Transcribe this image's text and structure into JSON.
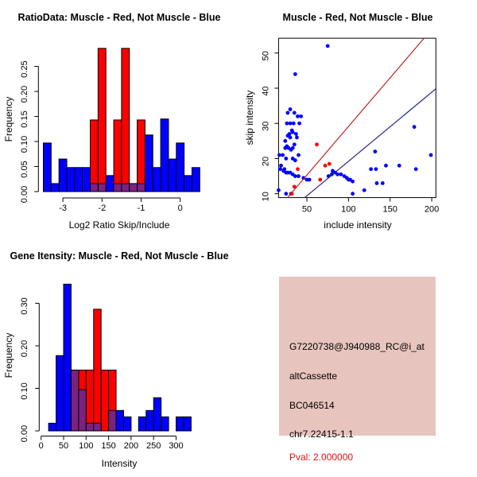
{
  "colors": {
    "blue": "#0000ff",
    "red": "#ff0000",
    "purple": "#7b2182",
    "line_red": "#c02428",
    "line_blue": "#202090",
    "pval": "#dd1111",
    "info_bg": "#e8c4be",
    "axis": "#000000"
  },
  "chart_data": [
    {
      "id": "ratio-histogram",
      "type": "bar",
      "title": "RatioData: Muscle - Red, Not Muscle - Blue",
      "xlabel": "Log2 Ratio Skip/Include",
      "ylabel": "Frequency",
      "bins": {
        "start": -3.5,
        "width": 0.2
      },
      "series": [
        {
          "name": "not-muscle",
          "color_key": "blue",
          "heights": [
            0.097,
            0.016,
            0.065,
            0.048,
            0.048,
            0.048,
            0.016,
            0.016,
            0.032,
            0.016,
            0.016,
            0.016,
            0.016,
            0.113,
            0.048,
            0.145,
            0.065,
            0.097,
            0.032,
            0.048
          ]
        },
        {
          "name": "muscle",
          "color_key": "red",
          "heights": [
            0,
            0,
            0,
            0,
            0,
            0,
            0.143,
            0.286,
            0,
            0.143,
            0.286,
            0,
            0.143,
            0,
            0,
            0,
            0,
            0,
            0,
            0
          ]
        },
        {
          "name": "overlap",
          "color_key": "purple",
          "heights": [
            0,
            0,
            0,
            0,
            0,
            0,
            0.016,
            0.016,
            0,
            0.016,
            0.016,
            0.016,
            0.016,
            0,
            0,
            0,
            0,
            0,
            0,
            0
          ]
        }
      ],
      "x_ticks": {
        "values": [
          -3,
          -2,
          -1,
          0
        ],
        "labels": [
          "-3",
          "-2",
          "-1",
          "0"
        ]
      },
      "y_ticks": {
        "values": [
          0,
          0.05,
          0.1,
          0.15,
          0.2,
          0.25
        ],
        "labels": [
          "0.00",
          "0.05",
          "0.10",
          "0.15",
          "0.20",
          "0.25"
        ]
      },
      "xlim": [
        -3.5,
        0.5
      ],
      "ylim": [
        0,
        0.29
      ],
      "grid": false,
      "legend": "none"
    },
    {
      "id": "intensity-scatter",
      "type": "scatter",
      "title": "Muscle - Red, Not Muscle - Blue",
      "xlabel": "include intensity",
      "ylabel": "skip intensity",
      "series": [
        {
          "name": "not-muscle",
          "color_key": "blue",
          "points": [
            [
              75,
              52
            ],
            [
              36,
              44
            ],
            [
              30,
              34
            ],
            [
              27,
              33
            ],
            [
              35,
              33
            ],
            [
              39,
              32
            ],
            [
              43,
              32
            ],
            [
              26,
              30
            ],
            [
              30,
              30
            ],
            [
              34,
              30
            ],
            [
              41,
              30
            ],
            [
              32,
              28
            ],
            [
              29,
              27
            ],
            [
              33,
              27.5
            ],
            [
              37,
              27
            ],
            [
              27,
              26.5
            ],
            [
              30,
              26
            ],
            [
              38,
              26
            ],
            [
              24,
              25
            ],
            [
              26,
              23.5
            ],
            [
              28,
              23
            ],
            [
              31,
              22.5
            ],
            [
              33,
              23
            ],
            [
              35,
              24
            ],
            [
              24,
              23
            ],
            [
              17,
              21
            ],
            [
              21,
              21
            ],
            [
              25,
              20
            ],
            [
              33,
              20
            ],
            [
              36,
              19.5
            ],
            [
              40,
              21
            ],
            [
              19,
              18
            ],
            [
              18,
              17
            ],
            [
              23,
              17
            ],
            [
              22,
              16.5
            ],
            [
              25,
              16
            ],
            [
              27,
              16
            ],
            [
              30,
              16
            ],
            [
              33,
              15.5
            ],
            [
              36,
              15
            ],
            [
              40,
              15
            ],
            [
              46,
              14.5
            ],
            [
              50,
              14
            ],
            [
              53,
              14
            ],
            [
              76,
              15
            ],
            [
              80,
              15.5
            ],
            [
              81,
              16.5
            ],
            [
              84,
              16
            ],
            [
              87,
              15.5
            ],
            [
              91,
              15.5
            ],
            [
              95,
              15
            ],
            [
              98,
              14.5
            ],
            [
              100,
              14
            ],
            [
              102,
              14
            ],
            [
              105,
              13.5
            ],
            [
              105,
              10
            ],
            [
              119,
              11
            ],
            [
              16,
              11
            ],
            [
              25,
              10
            ],
            [
              31,
              10
            ],
            [
              127,
              17
            ],
            [
              133,
              17
            ],
            [
              145,
              18
            ],
            [
              161,
              18
            ],
            [
              181,
              17
            ],
            [
              179,
              29
            ],
            [
              132,
              22
            ],
            [
              199,
              21
            ],
            [
              141,
              13
            ],
            [
              134,
              13
            ]
          ]
        },
        {
          "name": "muscle",
          "color_key": "red",
          "points": [
            [
              39,
              17
            ],
            [
              62,
              24
            ],
            [
              72,
              18
            ],
            [
              77,
              18.5
            ],
            [
              66,
              14
            ],
            [
              35,
              12
            ],
            [
              32,
              10
            ]
          ]
        }
      ],
      "lines": [
        {
          "name": "muscle-fit-line",
          "color_key": "line_red",
          "from": [
            26.8,
            8.9
          ],
          "to": [
            190.7,
            54.2
          ]
        },
        {
          "name": "not-muscle-fit-line",
          "color_key": "line_blue",
          "from": [
            47.4,
            8.9
          ],
          "to": [
            204.8,
            39.8
          ]
        }
      ],
      "x_ticks": {
        "values": [
          50,
          100,
          150,
          200
        ],
        "labels": [
          "50",
          "100",
          "150",
          "200"
        ]
      },
      "y_ticks": {
        "values": [
          10,
          20,
          30,
          40,
          50
        ],
        "labels": [
          "10",
          "20",
          "30",
          "40",
          "50"
        ]
      },
      "xlim": [
        16,
        205
      ],
      "ylim": [
        8.9,
        54.2
      ],
      "grid": false,
      "legend": "none"
    },
    {
      "id": "gene-intensity-histogram",
      "type": "bar",
      "title": "Gene Itensity: Muscle - Red, Not Muscle - Blue",
      "xlabel": "Intensity",
      "ylabel": "Frequency",
      "bins": {
        "start": 16.67,
        "width": 16.67
      },
      "series": [
        {
          "name": "not-muscle",
          "color_key": "blue",
          "heights": [
            0.018,
            0.177,
            0.345,
            0.143,
            0.097,
            0.018,
            0.018,
            0,
            0.048,
            0.048,
            0.033,
            0,
            0.033,
            0.048,
            0.078,
            0.033,
            0,
            0.033,
            0.033
          ]
        },
        {
          "name": "muscle",
          "color_key": "red",
          "heights": [
            0,
            0,
            0,
            0.143,
            0.143,
            0.143,
            0.286,
            0.143,
            0.143,
            0,
            0,
            0,
            0,
            0,
            0,
            0,
            0,
            0,
            0
          ]
        },
        {
          "name": "overlap",
          "color_key": "purple",
          "heights": [
            0,
            0,
            0,
            0.143,
            0.097,
            0.018,
            0.018,
            0,
            0.048,
            0,
            0,
            0,
            0,
            0,
            0,
            0,
            0,
            0,
            0
          ]
        }
      ],
      "x_ticks": {
        "values": [
          0,
          50,
          100,
          150,
          200,
          250,
          300
        ],
        "labels": [
          "0",
          "50",
          "100",
          "150",
          "200",
          "250",
          "300"
        ]
      },
      "y_ticks": {
        "values": [
          0,
          0.1,
          0.2,
          0.3
        ],
        "labels": [
          "0.00",
          "0.10",
          "0.20",
          "0.30"
        ]
      },
      "xlim": [
        0,
        335
      ],
      "ylim": [
        0,
        0.36
      ],
      "grid": false,
      "legend": "none"
    }
  ],
  "info_box": {
    "probe_id": "G7220738@J940988_RC@i_at",
    "splice_type": "altCassette",
    "accession": "BC046514",
    "locus": "chr7.22415-1.1",
    "pval": "Pval: 2.000000"
  }
}
